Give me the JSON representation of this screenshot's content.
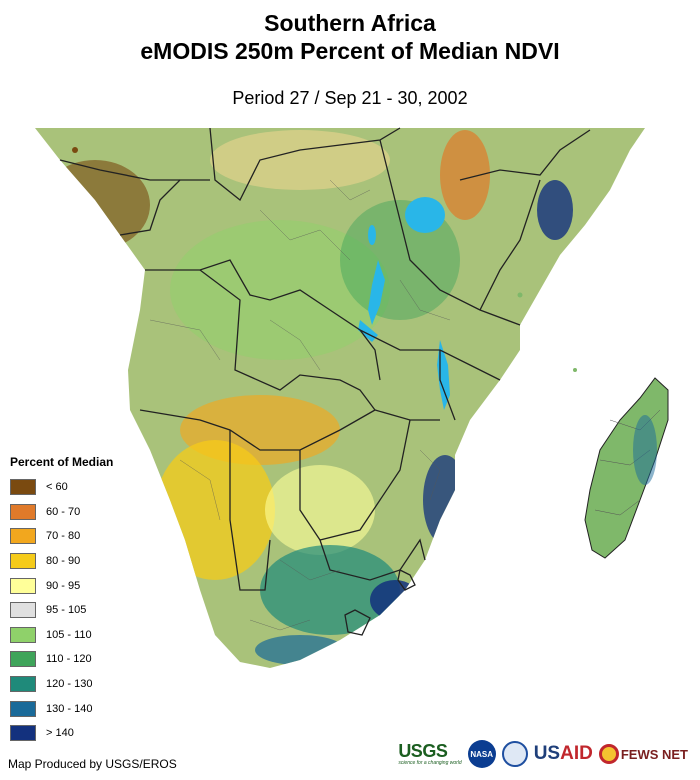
{
  "header": {
    "title_line1": "Southern Africa",
    "title_line2": "eMODIS 250m Percent of Median NDVI",
    "subtitle": "Period 27 / Sep 21 - 30, 2002"
  },
  "legend": {
    "title": "Percent of Median",
    "items": [
      {
        "label": "< 60",
        "color": "#7a4a10"
      },
      {
        "label": "60 - 70",
        "color": "#e07a2a"
      },
      {
        "label": "70 - 80",
        "color": "#f2a71e"
      },
      {
        "label": "80 - 90",
        "color": "#f5cb1a"
      },
      {
        "label": "90 - 95",
        "color": "#ffff99"
      },
      {
        "label": "95 - 105",
        "color": "#e0e0e0"
      },
      {
        "label": "105 - 110",
        "color": "#8fd16a"
      },
      {
        "label": "110 - 120",
        "color": "#3fa45a"
      },
      {
        "label": "120 - 130",
        "color": "#1f8a7a"
      },
      {
        "label": "130 - 140",
        "color": "#1a6a99"
      },
      {
        "label": "> 140",
        "color": "#13317e"
      }
    ]
  },
  "footer": {
    "credit": "Map Produced by USGS/EROS",
    "logos": {
      "usgs": "USGS",
      "usgs_tagline": "science for a changing world",
      "nasa": "NASA",
      "usaid_a": "US",
      "usaid_b": "AID",
      "fews": "FEWS NET"
    }
  },
  "colors": {
    "land_base": "#a9c27a",
    "water": "#29b6e8",
    "border": "#222222"
  }
}
